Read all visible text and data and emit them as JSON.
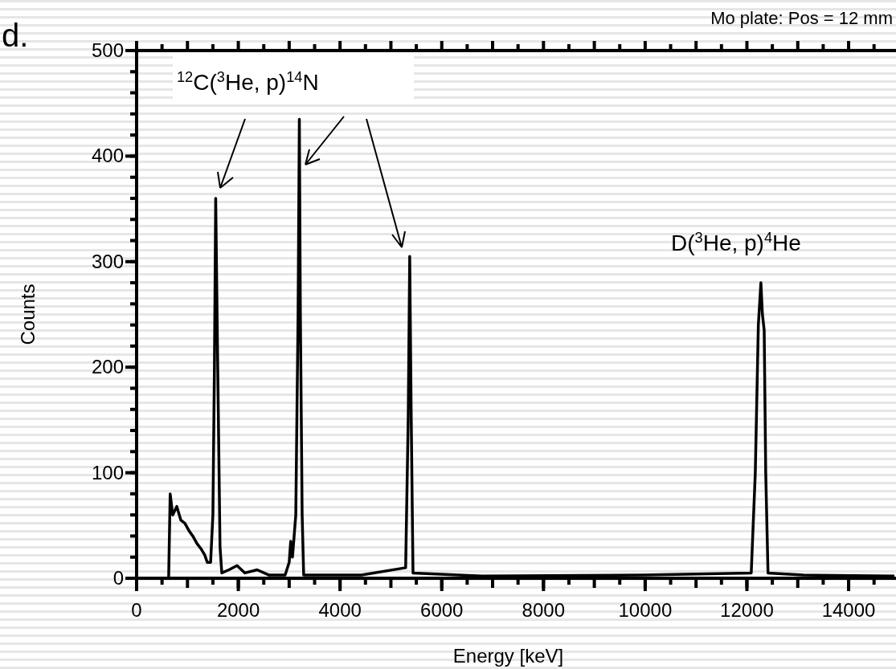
{
  "chart_data": {
    "type": "line",
    "subtitle": "Mo plate: Pos = 12 mm",
    "xlabel": "Energy [keV]",
    "ylabel": "Counts",
    "annotations": [
      "d.",
      "$^{12}$C($^{3}$He, p)$^{14}$N",
      "D($^{3}$He, p)$^{4}$He"
    ],
    "series": [
      {
        "color": "#000000",
        "x": [
          0,
          630,
          660,
          710,
          790,
          870,
          950,
          1030,
          1105,
          1185,
          1265,
          1340,
          1390,
          1455,
          1500,
          1530,
          1555,
          1595,
          1640,
          1675,
          1815,
          1975,
          2130,
          2370,
          2605,
          2920,
          3000,
          3030,
          3065,
          3130,
          3175,
          3200,
          3220,
          3255,
          3285,
          4420,
          5290,
          5340,
          5370,
          5400,
          5435,
          6790,
          9950,
          12085,
          12165,
          12225,
          12275,
          12305,
          12340,
          12370,
          12415,
          13110,
          14900
        ],
        "values": [
          0,
          0,
          80,
          60,
          68,
          55,
          52,
          45,
          40,
          33,
          28,
          22,
          15,
          15,
          60,
          200,
          360,
          200,
          30,
          5,
          8,
          12,
          5,
          8,
          3,
          3,
          15,
          35,
          20,
          60,
          250,
          435,
          250,
          60,
          3,
          3,
          10,
          150,
          305,
          150,
          5,
          2,
          3,
          5,
          100,
          240,
          280,
          250,
          235,
          100,
          5,
          3,
          2
        ]
      }
    ],
    "xlim": [
      0,
      14900
    ],
    "xticks": [
      0,
      2000,
      4000,
      6000,
      8000,
      10000,
      12000,
      14000
    ],
    "ylim": [
      0,
      500
    ],
    "yticks": [
      0,
      100,
      200,
      300,
      400,
      500
    ],
    "grid": false,
    "line_style": "solid"
  }
}
